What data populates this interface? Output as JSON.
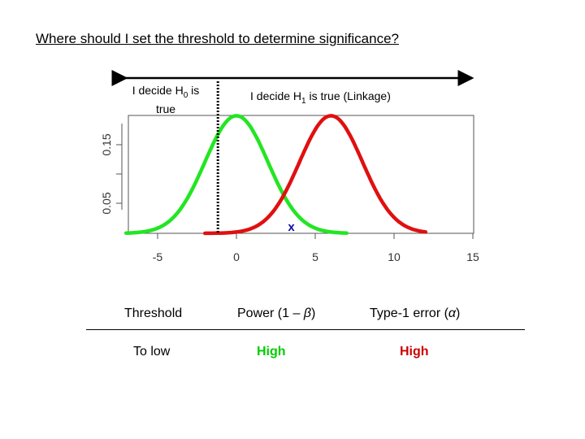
{
  "slide": {
    "title": "Where should I set the threshold to determine significance?"
  },
  "annotations": {
    "h0_label_pre": "I decide H",
    "h0_label_sub": "0",
    "h0_label_post": " is",
    "h0_label_line2": "true",
    "h1_label_pre": "I decide H",
    "h1_label_sub": "1",
    "h1_label_post": " is true (Linkage)",
    "crossing_marker": "x"
  },
  "colors": {
    "null_curve": "#22e622",
    "alt_curve": "#e01010",
    "marker": "#1010a0",
    "high_power": "#00cc00",
    "high_error": "#cc0000"
  },
  "chart_data": {
    "type": "line",
    "x_range": [
      -7,
      15
    ],
    "ylim": [
      0.0,
      0.2
    ],
    "x_ticks": [
      -5,
      0,
      5,
      10,
      15
    ],
    "y_ticks": [
      0.05,
      0.15
    ],
    "series": [
      {
        "mean": 0,
        "sd": 2,
        "x_start": -7,
        "x_end": 7,
        "color": "null_curve"
      },
      {
        "mean": 6,
        "sd": 2,
        "x_start": -2,
        "x_end": 12,
        "color": "alt_curve"
      }
    ],
    "threshold_x": -2,
    "marker_x": 4,
    "grid": false
  },
  "table": {
    "headers": {
      "threshold": "Threshold",
      "power_pre": "Power (1 – ",
      "power_symbol": "β",
      "power_post": ")",
      "type1_pre": "Type-1 error (",
      "type1_symbol": "α",
      "type1_post": ")"
    },
    "row": {
      "threshold": "To low",
      "power": "High",
      "type1": "High"
    }
  }
}
